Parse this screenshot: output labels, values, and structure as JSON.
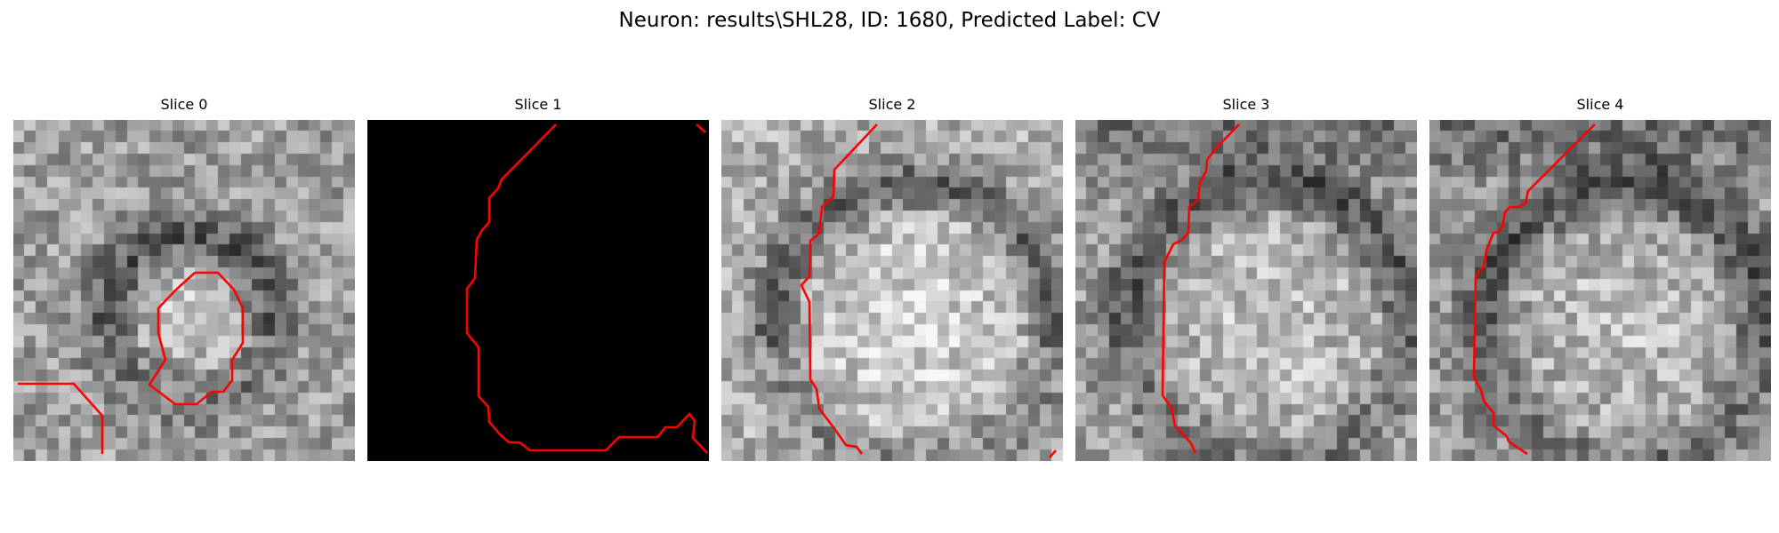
{
  "figure": {
    "title": "Neuron: results\\SHL28, ID: 1680, Predicted Label: CV"
  },
  "contour_color": "#ff0000",
  "panels": [
    {
      "title": "Slice 0",
      "background": "grayscale",
      "brightness_bias": 0.0
    },
    {
      "title": "Slice 1",
      "background": "black",
      "brightness_bias": 0.0
    },
    {
      "title": "Slice 2",
      "background": "grayscale",
      "brightness_bias": 0.06
    },
    {
      "title": "Slice 3",
      "background": "grayscale",
      "brightness_bias": 0.0
    },
    {
      "title": "Slice 4",
      "background": "grayscale",
      "brightness_bias": -0.02
    }
  ]
}
